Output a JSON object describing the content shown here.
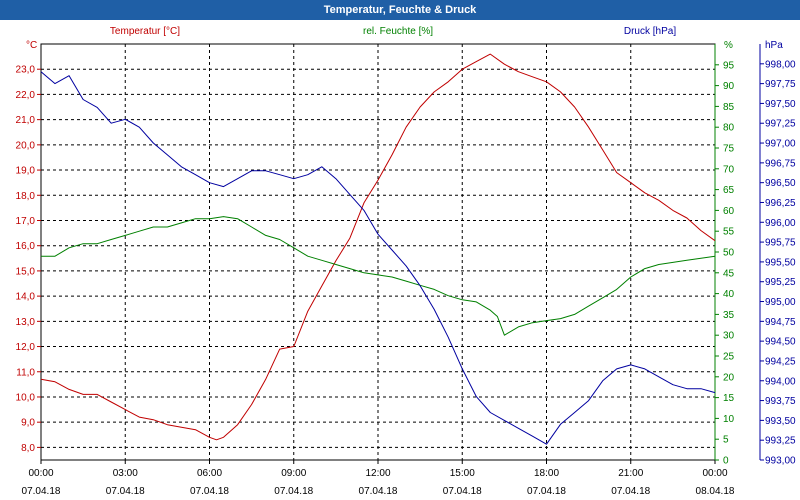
{
  "window": {
    "title": "Temperatur, Feuchte & Druck"
  },
  "chart_data": {
    "type": "line",
    "title": "Temperatur, Feuchte & Druck",
    "xlabel": "",
    "grid": true,
    "legend": "top",
    "x_ticks": [
      {
        "hours": 0,
        "time": "00:00",
        "date": "07.04.18"
      },
      {
        "hours": 3,
        "time": "03:00",
        "date": "07.04.18"
      },
      {
        "hours": 6,
        "time": "06:00",
        "date": "07.04.18"
      },
      {
        "hours": 9,
        "time": "09:00",
        "date": "07.04.18"
      },
      {
        "hours": 12,
        "time": "12:00",
        "date": "07.04.18"
      },
      {
        "hours": 15,
        "time": "15:00",
        "date": "07.04.18"
      },
      {
        "hours": 18,
        "time": "18:00",
        "date": "07.04.18"
      },
      {
        "hours": 21,
        "time": "21:00",
        "date": "07.04.18"
      },
      {
        "hours": 24,
        "time": "00:00",
        "date": "08.04.18"
      }
    ],
    "xlim": [
      0,
      24
    ],
    "axes": {
      "temperature": {
        "unit": "°C",
        "ylim": [
          7.5,
          24.0
        ],
        "color": "#c00000",
        "ticks": [
          "8,0",
          "9,0",
          "10,0",
          "11,0",
          "12,0",
          "13,0",
          "14,0",
          "15,0",
          "16,0",
          "17,0",
          "18,0",
          "19,0",
          "20,0",
          "21,0",
          "22,0",
          "23,0"
        ],
        "tick_values": [
          8,
          9,
          10,
          11,
          12,
          13,
          14,
          15,
          16,
          17,
          18,
          19,
          20,
          21,
          22,
          23
        ]
      },
      "humidity": {
        "unit": "%",
        "ylim": [
          0,
          100
        ],
        "color": "#008000",
        "ticks": [
          "0",
          "5",
          "10",
          "15",
          "20",
          "25",
          "30",
          "35",
          "40",
          "45",
          "50",
          "55",
          "60",
          "65",
          "70",
          "75",
          "80",
          "85",
          "90",
          "95"
        ],
        "tick_values": [
          0,
          5,
          10,
          15,
          20,
          25,
          30,
          35,
          40,
          45,
          50,
          55,
          60,
          65,
          70,
          75,
          80,
          85,
          90,
          95
        ]
      },
      "pressure": {
        "unit": "hPa",
        "ylim": [
          993.0,
          998.25
        ],
        "color": "#0000a0",
        "ticks": [
          "993,00",
          "993,25",
          "993,50",
          "993,75",
          "994,00",
          "994,25",
          "994,50",
          "994,75",
          "995,00",
          "995,25",
          "995,50",
          "995,75",
          "996,00",
          "996,25",
          "996,50",
          "996,75",
          "997,00",
          "997,25",
          "997,50",
          "997,75",
          "998,00"
        ],
        "tick_values": [
          993.0,
          993.25,
          993.5,
          993.75,
          994.0,
          994.25,
          994.5,
          994.75,
          995.0,
          995.25,
          995.5,
          995.75,
          996.0,
          996.25,
          996.5,
          996.75,
          997.0,
          997.25,
          997.5,
          997.75,
          998.0
        ]
      }
    },
    "series": [
      {
        "name": "Temperatur [°C]",
        "axis": "temperature",
        "color": "#c00000",
        "x": [
          0,
          0.5,
          1,
          1.5,
          2,
          2.5,
          3,
          3.5,
          4,
          4.5,
          5,
          5.5,
          6,
          6.25,
          6.5,
          7,
          7.5,
          8,
          8.5,
          9,
          9.5,
          10,
          10.5,
          11,
          11.5,
          12,
          12.5,
          13,
          13.5,
          14,
          14.5,
          15,
          15.5,
          16,
          16.5,
          17,
          17.5,
          18,
          18.5,
          19,
          19.5,
          20,
          20.5,
          21,
          21.5,
          22,
          22.5,
          23,
          23.5,
          24
        ],
        "values": [
          10.7,
          10.6,
          10.3,
          10.1,
          10.1,
          9.8,
          9.5,
          9.2,
          9.1,
          8.9,
          8.8,
          8.7,
          8.4,
          8.3,
          8.4,
          8.9,
          9.7,
          10.7,
          11.9,
          12.0,
          13.4,
          14.4,
          15.4,
          16.3,
          17.7,
          18.6,
          19.6,
          20.7,
          21.5,
          22.1,
          22.5,
          23.0,
          23.3,
          23.6,
          23.2,
          22.9,
          22.7,
          22.5,
          22.1,
          21.5,
          20.7,
          19.8,
          18.9,
          18.5,
          18.1,
          17.8,
          17.4,
          17.1,
          16.6,
          16.2
        ]
      },
      {
        "name": "rel. Feuchte [%]",
        "axis": "humidity",
        "color": "#008000",
        "x": [
          0,
          0.5,
          1,
          1.5,
          2,
          2.5,
          3,
          3.5,
          4,
          4.5,
          5,
          5.5,
          6,
          6.5,
          7,
          7.5,
          8,
          8.5,
          9,
          9.5,
          10,
          10.5,
          11,
          11.5,
          12,
          12.5,
          13,
          13.5,
          14,
          14.5,
          15,
          15.5,
          16,
          16.25,
          16.5,
          17,
          17.5,
          18,
          18.5,
          19,
          19.5,
          20,
          20.5,
          21,
          21.5,
          22,
          22.5,
          23,
          23.5,
          24
        ],
        "values": [
          49,
          49,
          51,
          52,
          52,
          53,
          54,
          55,
          56,
          56,
          57,
          58,
          58,
          58.5,
          58,
          56,
          54,
          53,
          51,
          49,
          48,
          47,
          46,
          45,
          44.5,
          44,
          43,
          42,
          41,
          39.5,
          38.5,
          38,
          36,
          34.5,
          30,
          32,
          33,
          33.5,
          34,
          35,
          37,
          39,
          41,
          44,
          46,
          47,
          47.5,
          48,
          48.5,
          49
        ]
      },
      {
        "name": "Druck [hPa]",
        "axis": "pressure",
        "color": "#0000a0",
        "x": [
          0,
          0.5,
          1,
          1.5,
          2,
          2.5,
          3,
          3.5,
          4,
          4.5,
          5,
          5.5,
          6,
          6.5,
          7,
          7.5,
          8,
          8.5,
          9,
          9.5,
          10,
          10.5,
          11,
          11.5,
          12,
          12.5,
          13,
          13.5,
          14,
          14.5,
          15,
          15.5,
          16,
          16.5,
          17,
          17.5,
          18,
          18.5,
          19,
          19.5,
          20,
          20.5,
          21,
          21.5,
          22,
          22.5,
          23,
          23.5,
          24
        ],
        "values": [
          997.9,
          997.75,
          997.85,
          997.55,
          997.45,
          997.25,
          997.3,
          997.2,
          997.0,
          996.85,
          996.7,
          996.6,
          996.5,
          996.45,
          996.55,
          996.65,
          996.65,
          996.6,
          996.55,
          996.6,
          996.7,
          996.55,
          996.35,
          996.15,
          995.85,
          995.65,
          995.45,
          995.2,
          994.9,
          994.55,
          994.15,
          993.8,
          993.6,
          993.5,
          993.4,
          993.3,
          993.2,
          993.45,
          993.6,
          993.75,
          994.0,
          994.15,
          994.2,
          994.15,
          994.05,
          993.95,
          993.9,
          993.9,
          993.85
        ]
      }
    ]
  }
}
